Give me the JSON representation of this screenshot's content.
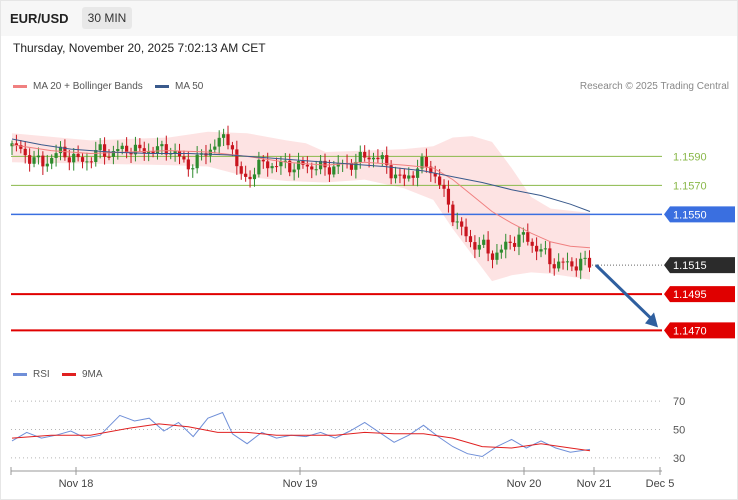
{
  "header": {
    "symbol": "EUR/USD",
    "timeframe": "30 MIN",
    "datetime": "Thursday, November 20, 2025 7:02:13 AM CET"
  },
  "legend": {
    "ma20_label": "MA 20 + Bollinger Bands",
    "ma50_label": "MA 50",
    "research": "Research © 2025 Trading Central",
    "rsi_label": "RSI",
    "ma9_label": "9MA"
  },
  "colors": {
    "ma20": "#f08080",
    "ma50": "#3a5a8c",
    "bollinger_fill": "#fde0e0",
    "candle_up": "#2e8b2e",
    "candle_down": "#c8141e",
    "support": "#e00000",
    "pivot": "#3a6fe0",
    "resistance": "#8ab84a",
    "current": "#2b2b2b",
    "rsi": "#6f8fd8",
    "rsi_ma": "#e02020",
    "arrow": "#2f5f9f"
  },
  "chart_data": {
    "type": "candlestick",
    "instrument": "EUR/USD",
    "interval": "30 MIN",
    "ylim": [
      1.1453,
      1.1622
    ],
    "price_levels": [
      {
        "label": "1.1590",
        "value": 1.159,
        "kind": "resistance"
      },
      {
        "label": "1.1570",
        "value": 1.157,
        "kind": "resistance"
      },
      {
        "label": "1.1550",
        "value": 1.155,
        "kind": "pivot"
      },
      {
        "label": "1.1515",
        "value": 1.1515,
        "kind": "current"
      },
      {
        "label": "1.1495",
        "value": 1.1495,
        "kind": "support"
      },
      {
        "label": "1.1470",
        "value": 1.147,
        "kind": "support"
      }
    ],
    "x_tick_labels": [
      "Nov 18",
      "Nov 19",
      "Nov 20",
      "Nov 21",
      "Dec 5"
    ],
    "forecast_arrow": {
      "from": 1.1515,
      "to": 1.147
    },
    "close_points": [
      [
        0,
        1.1597
      ],
      [
        10,
        1.1594
      ],
      [
        20,
        1.1588
      ],
      [
        30,
        1.1585
      ],
      [
        40,
        1.1589
      ],
      [
        50,
        1.1593
      ],
      [
        60,
        1.159
      ],
      [
        70,
        1.1586
      ],
      [
        80,
        1.1589
      ],
      [
        90,
        1.1594
      ],
      [
        100,
        1.1592
      ],
      [
        110,
        1.1594
      ],
      [
        120,
        1.1596
      ],
      [
        130,
        1.1593
      ],
      [
        140,
        1.1595
      ],
      [
        150,
        1.1594
      ],
      [
        160,
        1.1596
      ],
      [
        170,
        1.1589
      ],
      [
        180,
        1.1584
      ],
      [
        190,
        1.1587
      ],
      [
        200,
        1.1595
      ],
      [
        210,
        1.1599
      ],
      [
        215,
        1.1602
      ],
      [
        220,
        1.1603
      ],
      [
        225,
        1.1597
      ],
      [
        230,
        1.1578
      ],
      [
        240,
        1.1575
      ],
      [
        250,
        1.1582
      ],
      [
        260,
        1.1586
      ],
      [
        270,
        1.1583
      ],
      [
        280,
        1.1585
      ],
      [
        290,
        1.1582
      ],
      [
        300,
        1.1584
      ],
      [
        310,
        1.1583
      ],
      [
        320,
        1.1581
      ],
      [
        330,
        1.1584
      ],
      [
        340,
        1.1583
      ],
      [
        350,
        1.1587
      ],
      [
        360,
        1.1589
      ],
      [
        370,
        1.1591
      ],
      [
        380,
        1.1585
      ],
      [
        390,
        1.1578
      ],
      [
        400,
        1.1573
      ],
      [
        410,
        1.158
      ],
      [
        420,
        1.1585
      ],
      [
        430,
        1.158
      ],
      [
        440,
        1.1565
      ],
      [
        450,
        1.155
      ],
      [
        460,
        1.1537
      ],
      [
        470,
        1.153
      ],
      [
        480,
        1.1528
      ],
      [
        490,
        1.1522
      ],
      [
        500,
        1.1525
      ],
      [
        510,
        1.1532
      ],
      [
        520,
        1.1535
      ],
      [
        530,
        1.153
      ],
      [
        540,
        1.1525
      ],
      [
        550,
        1.1517
      ],
      [
        560,
        1.1516
      ],
      [
        570,
        1.1515
      ],
      [
        580,
        1.1517
      ],
      [
        590,
        1.1515
      ]
    ],
    "ma50_points": [
      [
        0,
        1.1602
      ],
      [
        30,
        1.1598
      ],
      [
        60,
        1.1595
      ],
      [
        100,
        1.1593
      ],
      [
        140,
        1.1592
      ],
      [
        180,
        1.1592
      ],
      [
        220,
        1.1591
      ],
      [
        260,
        1.1589
      ],
      [
        300,
        1.1587
      ],
      [
        340,
        1.1585
      ],
      [
        380,
        1.1583
      ],
      [
        420,
        1.158
      ],
      [
        450,
        1.1576
      ],
      [
        480,
        1.1572
      ],
      [
        510,
        1.1567
      ],
      [
        540,
        1.1563
      ],
      [
        570,
        1.1557
      ],
      [
        590,
        1.1552
      ]
    ],
    "ma20_points": [
      [
        0,
        1.1598
      ],
      [
        40,
        1.1594
      ],
      [
        80,
        1.1592
      ],
      [
        120,
        1.1593
      ],
      [
        160,
        1.1594
      ],
      [
        200,
        1.1593
      ],
      [
        240,
        1.159
      ],
      [
        280,
        1.1586
      ],
      [
        320,
        1.1584
      ],
      [
        360,
        1.1586
      ],
      [
        400,
        1.1584
      ],
      [
        430,
        1.1582
      ],
      [
        450,
        1.1574
      ],
      [
        470,
        1.1563
      ],
      [
        490,
        1.1552
      ],
      [
        510,
        1.1544
      ],
      [
        530,
        1.1537
      ],
      [
        550,
        1.1531
      ],
      [
        570,
        1.1528
      ],
      [
        590,
        1.1527
      ]
    ],
    "bollinger_upper": [
      [
        0,
        1.1606
      ],
      [
        80,
        1.1601
      ],
      [
        160,
        1.1603
      ],
      [
        200,
        1.1607
      ],
      [
        240,
        1.1606
      ],
      [
        280,
        1.1601
      ],
      [
        300,
        1.1599
      ],
      [
        320,
        1.1593
      ],
      [
        360,
        1.1594
      ],
      [
        400,
        1.1595
      ],
      [
        430,
        1.1597
      ],
      [
        450,
        1.1603
      ],
      [
        470,
        1.1604
      ],
      [
        490,
        1.16
      ],
      [
        510,
        1.1582
      ],
      [
        530,
        1.1562
      ],
      [
        550,
        1.1554
      ],
      [
        590,
        1.1551
      ]
    ],
    "bollinger_lower": [
      [
        0,
        1.1586
      ],
      [
        80,
        1.1585
      ],
      [
        160,
        1.1584
      ],
      [
        200,
        1.1583
      ],
      [
        240,
        1.1576
      ],
      [
        280,
        1.1573
      ],
      [
        320,
        1.1572
      ],
      [
        360,
        1.1574
      ],
      [
        400,
        1.1568
      ],
      [
        430,
        1.156
      ],
      [
        450,
        1.154
      ],
      [
        470,
        1.1522
      ],
      [
        490,
        1.1504
      ],
      [
        510,
        1.1508
      ],
      [
        530,
        1.151
      ],
      [
        550,
        1.1509
      ],
      [
        570,
        1.1507
      ],
      [
        590,
        1.1505
      ]
    ],
    "rsi": {
      "ylim": [
        25,
        80
      ],
      "ticks": [
        "70",
        "50",
        "30"
      ],
      "tick_values": [
        70,
        50,
        30
      ],
      "rsi_points": [
        [
          0,
          42
        ],
        [
          15,
          48
        ],
        [
          30,
          44
        ],
        [
          45,
          46
        ],
        [
          60,
          49
        ],
        [
          75,
          44
        ],
        [
          90,
          46
        ],
        [
          110,
          60
        ],
        [
          125,
          56
        ],
        [
          140,
          58
        ],
        [
          155,
          49
        ],
        [
          170,
          55
        ],
        [
          185,
          45
        ],
        [
          200,
          58
        ],
        [
          215,
          62
        ],
        [
          225,
          47
        ],
        [
          240,
          40
        ],
        [
          255,
          48
        ],
        [
          270,
          44
        ],
        [
          285,
          46
        ],
        [
          300,
          45
        ],
        [
          315,
          48
        ],
        [
          330,
          44
        ],
        [
          345,
          49
        ],
        [
          360,
          55
        ],
        [
          375,
          48
        ],
        [
          390,
          41
        ],
        [
          405,
          46
        ],
        [
          420,
          53
        ],
        [
          435,
          45
        ],
        [
          450,
          38
        ],
        [
          465,
          33
        ],
        [
          480,
          31
        ],
        [
          495,
          38
        ],
        [
          510,
          43
        ],
        [
          525,
          37
        ],
        [
          540,
          42
        ],
        [
          555,
          37
        ],
        [
          570,
          34
        ],
        [
          590,
          36
        ]
      ],
      "ma9_points": [
        [
          0,
          44
        ],
        [
          40,
          46
        ],
        [
          80,
          46
        ],
        [
          120,
          51
        ],
        [
          150,
          54
        ],
        [
          180,
          52
        ],
        [
          210,
          48
        ],
        [
          240,
          48
        ],
        [
          270,
          46
        ],
        [
          300,
          46
        ],
        [
          330,
          46
        ],
        [
          360,
          48
        ],
        [
          390,
          47
        ],
        [
          420,
          47
        ],
        [
          450,
          44
        ],
        [
          480,
          38
        ],
        [
          510,
          37
        ],
        [
          540,
          40
        ],
        [
          570,
          37
        ],
        [
          590,
          35
        ]
      ]
    }
  }
}
